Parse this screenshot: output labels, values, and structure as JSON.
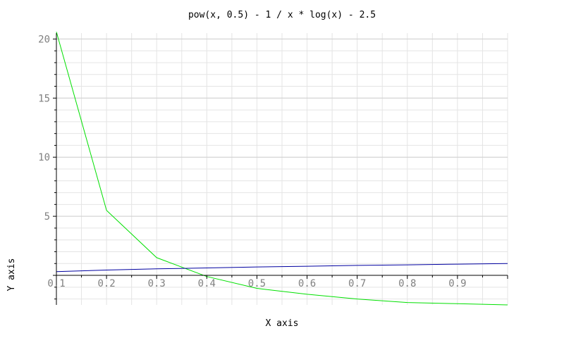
{
  "chart_data": {
    "type": "line",
    "title": "pow(x, 0.5) - 1 / x * log(x) - 2.5",
    "xlabel": "X axis",
    "ylabel": "Y axis",
    "xlim": [
      0.1,
      1.0
    ],
    "ylim": [
      -2.5,
      20.5
    ],
    "grid": true,
    "x_ticks": [
      "0.1",
      "0.2",
      "0.3",
      "0.4",
      "0.5",
      "0.6",
      "0.7",
      "0.8",
      "0.9"
    ],
    "y_ticks": [
      "5",
      "10",
      "15",
      "20"
    ],
    "series": [
      {
        "color": "#00e000",
        "x": [
          0.1,
          0.2,
          0.3,
          0.4,
          0.5,
          0.6,
          0.7,
          0.8,
          0.9,
          1.0
        ],
        "y": [
          20.6,
          5.5,
          1.5,
          -0.1,
          -1.1,
          -1.6,
          -2.0,
          -2.3,
          -2.4,
          -2.5
        ]
      },
      {
        "color": "#0000a0",
        "x": [
          0.1,
          0.2,
          0.3,
          0.4,
          0.5,
          0.6,
          0.7,
          0.8,
          0.9,
          1.0
        ],
        "y": [
          0.32,
          0.45,
          0.55,
          0.63,
          0.71,
          0.77,
          0.84,
          0.89,
          0.95,
          1.0
        ]
      }
    ]
  }
}
